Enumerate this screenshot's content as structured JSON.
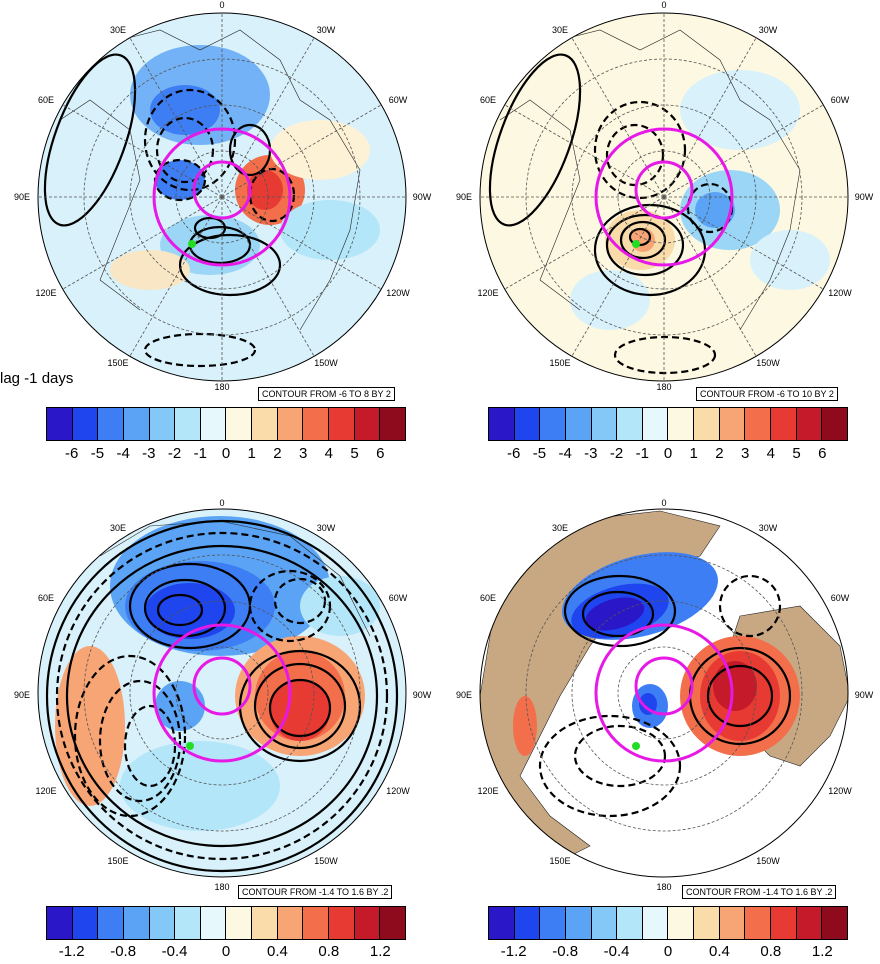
{
  "lag_label": "lag -1 days",
  "longitude_labels": [
    "0",
    "30W",
    "60W",
    "90W",
    "120W",
    "150W",
    "180",
    "150E",
    "120E",
    "90E",
    "60E",
    "30E"
  ],
  "panels": [
    {
      "id": "top-left",
      "contour_text": "CONTOUR FROM -6 TO 8 BY 2"
    },
    {
      "id": "top-right",
      "contour_text": "CONTOUR FROM -6 TO 10 BY 2"
    },
    {
      "id": "bottom-left",
      "contour_text": "CONTOUR FROM -1.4 TO 1.6 BY .2"
    },
    {
      "id": "bottom-right",
      "contour_text": "CONTOUR FROM -1.4 TO 1.6 BY .2"
    }
  ],
  "colorbar_colors": [
    "#2a17c8",
    "#1f45ef",
    "#3d7ef4",
    "#5aa3f5",
    "#83c8f6",
    "#b3e6f9",
    "#e6f8fb",
    "#fdf8e1",
    "#f9dcaa",
    "#f8a576",
    "#f36e4b",
    "#e63a33",
    "#c41a29",
    "#8e0b1e"
  ],
  "colorbar_top_ticks": [
    "-6",
    "-5",
    "-4",
    "-3",
    "-2",
    "-1",
    "0",
    "1",
    "2",
    "3",
    "4",
    "5",
    "6"
  ],
  "colorbar_bottom_ticks": [
    "-1.2",
    "-0.8",
    "-0.4",
    "0",
    "0.4",
    "0.8",
    "1.2"
  ],
  "colors": {
    "circle": "#e619e6",
    "marker": "#22dd22",
    "land": "#c8a882"
  }
}
